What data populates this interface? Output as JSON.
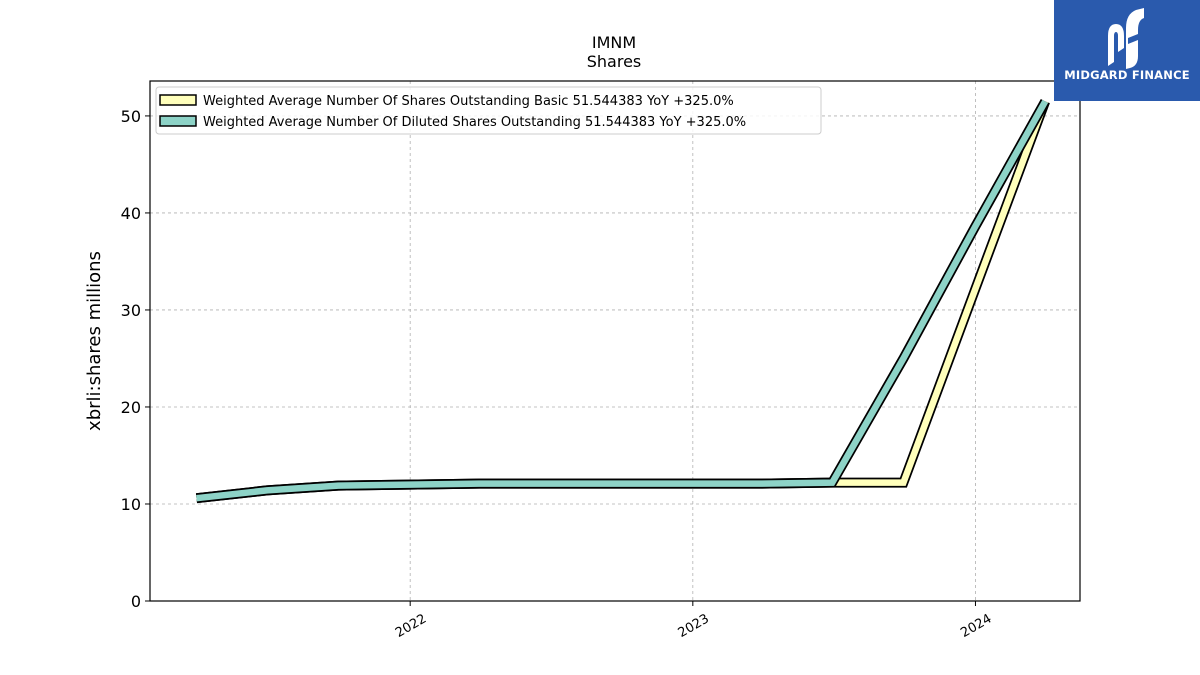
{
  "chart_data": {
    "type": "line",
    "title": "IMNM",
    "subtitle": "Shares",
    "xlabel": "",
    "ylabel": "xbrli:shares millions",
    "x_ticks": [
      "2022",
      "2023",
      "2024"
    ],
    "y_ticks": [
      0,
      10,
      20,
      30,
      40,
      50
    ],
    "ylim": [
      0,
      53.6
    ],
    "xlim": [
      "2021-01-30",
      "2024-05-15"
    ],
    "grid": true,
    "legend_position": "top-left",
    "x": [
      "2021-03-31",
      "2021-06-30",
      "2021-09-30",
      "2021-12-31",
      "2022-03-31",
      "2022-06-30",
      "2022-09-30",
      "2022-12-31",
      "2023-03-31",
      "2023-06-30",
      "2023-09-30",
      "2023-12-31",
      "2024-03-31"
    ],
    "series": [
      {
        "name": "Weighted Average Number Of Shares Outstanding Basic  51.544383 YoY +325.0%",
        "color": "#ffffbb",
        "values": [
          10.6,
          11.4,
          11.9,
          12.0,
          12.1,
          12.1,
          12.1,
          12.1,
          12.1,
          12.2,
          12.2,
          32.0,
          51.5
        ]
      },
      {
        "name": "Weighted Average Number Of Diluted Shares Outstanding  51.544383 YoY +325.0%",
        "color": "#8dd3c7",
        "values": [
          10.6,
          11.4,
          11.9,
          12.0,
          12.1,
          12.1,
          12.1,
          12.1,
          12.1,
          12.2,
          25.0,
          38.5,
          51.5
        ]
      }
    ]
  },
  "logo": {
    "text": "MIDGARD FINANCE",
    "background": "#2a5aad"
  }
}
